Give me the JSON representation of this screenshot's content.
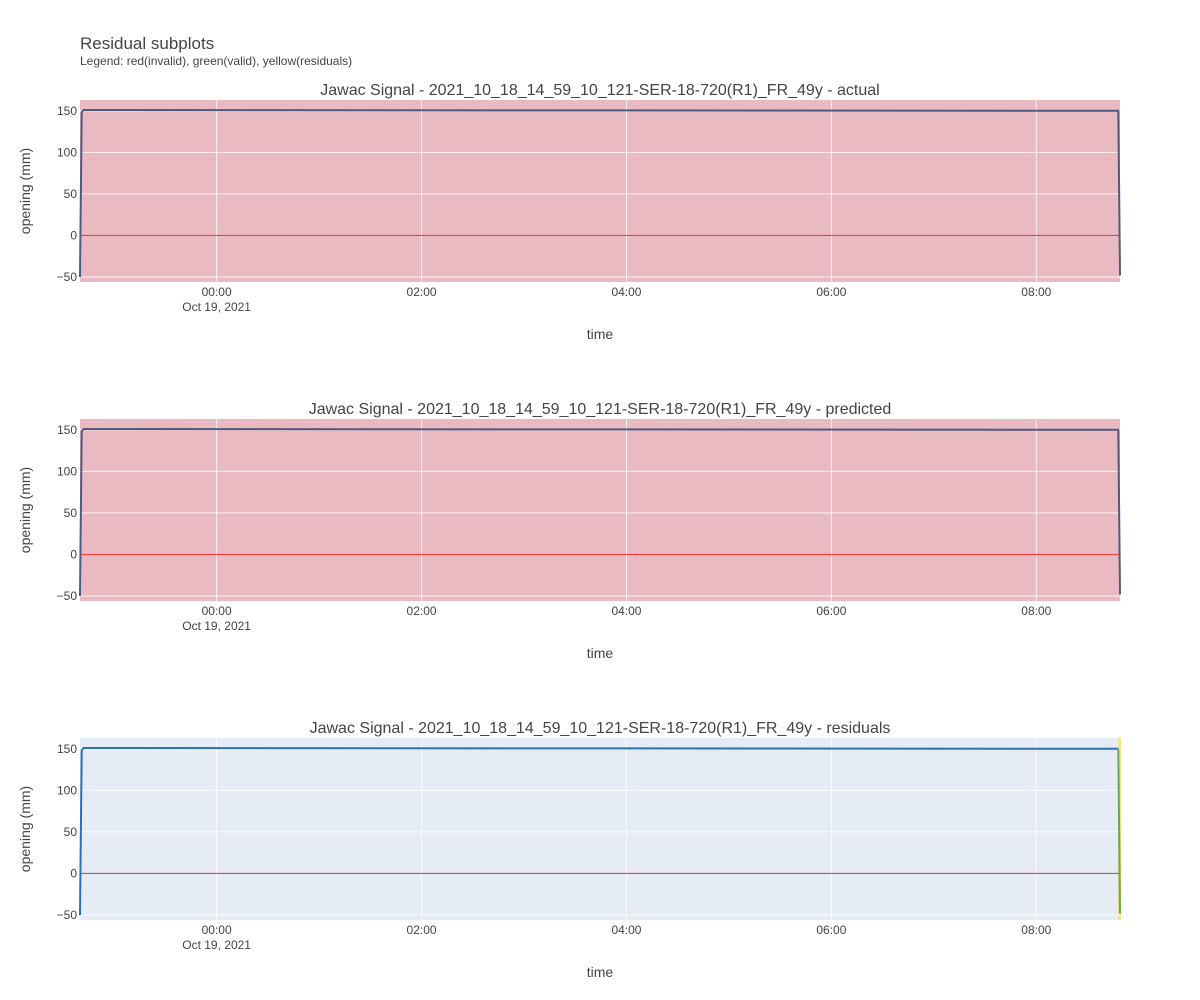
{
  "header": {
    "title": "Residual subplots",
    "subtitle": "Legend: red(invalid), green(valid), yellow(residuals)"
  },
  "colors": {
    "plot_bg": "#e5ecf6",
    "invalid_fill": "#eab5be",
    "grid": "#ffffff",
    "zero_line": "#ff3b3b",
    "line_dark": "#4f5b7e",
    "line_blue": "#2f6fb0",
    "tail_green": "#6aa84f",
    "tail_yellow": "#f2e28a"
  },
  "chart_data": [
    {
      "type": "line",
      "title": "Jawac Signal - 2021_10_18_14_59_10_121-SER-18-720(R1)_FR_49y - actual",
      "xlabel": "time",
      "ylabel": "opening (mm)",
      "background": "invalid",
      "x_ticks": [
        {
          "label": "00:00",
          "sublabel": "Oct 19, 2021"
        },
        {
          "label": "02:00",
          "sublabel": ""
        },
        {
          "label": "04:00",
          "sublabel": ""
        },
        {
          "label": "06:00",
          "sublabel": ""
        },
        {
          "label": "08:00",
          "sublabel": ""
        }
      ],
      "y_ticks": [
        "150",
        "100",
        "50",
        "0",
        "−50"
      ],
      "x_range": [
        "2021-10-18T22:40",
        "2021-10-19T08:49"
      ],
      "ylim": [
        -56,
        163
      ],
      "grid": true,
      "series": [
        {
          "color": "#4f5b7e",
          "x": [
            "2021-10-18T22:40",
            "2021-10-18T22:41",
            "2021-10-18T22:42",
            "2021-10-19T08:48",
            "2021-10-19T08:49"
          ],
          "y": [
            -50,
            148,
            151,
            150,
            -48
          ]
        }
      ]
    },
    {
      "type": "line",
      "title": "Jawac Signal - 2021_10_18_14_59_10_121-SER-18-720(R1)_FR_49y - predicted",
      "xlabel": "time",
      "ylabel": "opening (mm)",
      "background": "invalid",
      "x_ticks": [
        {
          "label": "00:00",
          "sublabel": "Oct 19, 2021"
        },
        {
          "label": "02:00",
          "sublabel": ""
        },
        {
          "label": "04:00",
          "sublabel": ""
        },
        {
          "label": "06:00",
          "sublabel": ""
        },
        {
          "label": "08:00",
          "sublabel": ""
        }
      ],
      "y_ticks": [
        "150",
        "100",
        "50",
        "0",
        "−50"
      ],
      "x_range": [
        "2021-10-18T22:40",
        "2021-10-19T08:49"
      ],
      "ylim": [
        -56,
        163
      ],
      "grid": true,
      "series": [
        {
          "color": "#4f5b7e",
          "x": [
            "2021-10-18T22:40",
            "2021-10-18T22:41",
            "2021-10-18T22:42",
            "2021-10-19T08:48",
            "2021-10-19T08:49"
          ],
          "y": [
            -50,
            148,
            151,
            150,
            -48
          ]
        }
      ]
    },
    {
      "type": "line",
      "title": "Jawac Signal - 2021_10_18_14_59_10_121-SER-18-720(R1)_FR_49y - residuals",
      "xlabel": "time",
      "ylabel": "opening (mm)",
      "background": "plot",
      "x_ticks": [
        {
          "label": "00:00",
          "sublabel": "Oct 19, 2021"
        },
        {
          "label": "02:00",
          "sublabel": ""
        },
        {
          "label": "04:00",
          "sublabel": ""
        },
        {
          "label": "06:00",
          "sublabel": ""
        },
        {
          "label": "08:00",
          "sublabel": ""
        }
      ],
      "y_ticks": [
        "150",
        "100",
        "50",
        "0",
        "−50"
      ],
      "x_range": [
        "2021-10-18T22:40",
        "2021-10-19T08:49"
      ],
      "ylim": [
        -56,
        163
      ],
      "grid": true,
      "series": [
        {
          "color": "#2f6fb0",
          "x": [
            "2021-10-18T22:40",
            "2021-10-18T22:41",
            "2021-10-18T22:42",
            "2021-10-19T08:48"
          ],
          "y": [
            -50,
            148,
            151,
            150
          ]
        },
        {
          "color": "#6aa84f",
          "x": [
            "2021-10-19T08:48",
            "2021-10-19T08:49"
          ],
          "y": [
            150,
            -48
          ]
        }
      ]
    }
  ]
}
